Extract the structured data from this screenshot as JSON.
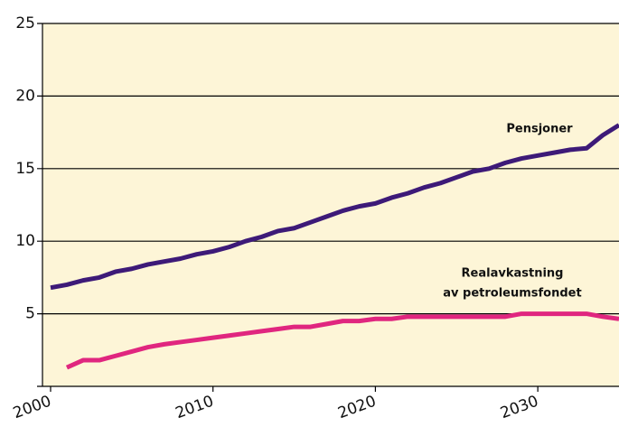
{
  "chart_data": {
    "type": "line",
    "x": [
      2000,
      2001,
      2002,
      2003,
      2004,
      2005,
      2006,
      2007,
      2008,
      2009,
      2010,
      2011,
      2012,
      2013,
      2014,
      2015,
      2016,
      2017,
      2018,
      2019,
      2020,
      2021,
      2022,
      2023,
      2024,
      2025,
      2026,
      2027,
      2028,
      2029,
      2030,
      2031,
      2032,
      2033,
      2034,
      2035
    ],
    "series": [
      {
        "name": "Pensjoner",
        "color": "#3d1a78",
        "values": [
          6.8,
          7.0,
          7.3,
          7.5,
          7.9,
          8.1,
          8.4,
          8.6,
          8.8,
          9.1,
          9.3,
          9.6,
          10.0,
          10.3,
          10.7,
          10.9,
          11.3,
          11.7,
          12.1,
          12.4,
          12.6,
          13.0,
          13.3,
          13.7,
          14.0,
          14.4,
          14.8,
          15.0,
          15.4,
          15.7,
          15.9,
          16.1,
          16.3,
          16.4,
          17.3,
          18.0
        ]
      },
      {
        "name": "Realavkastning av petroleumsfondet",
        "color": "#e0267f",
        "values": [
          null,
          1.3,
          1.8,
          1.8,
          2.1,
          2.4,
          2.7,
          2.9,
          3.05,
          3.2,
          3.35,
          3.5,
          3.65,
          3.8,
          3.95,
          4.1,
          4.1,
          4.3,
          4.5,
          4.5,
          4.65,
          4.65,
          4.8,
          4.8,
          4.8,
          4.8,
          4.8,
          4.8,
          4.8,
          5.0,
          5.0,
          5.0,
          5.0,
          5.0,
          4.8,
          4.65
        ]
      }
    ],
    "annotations": [
      "Pensjoner",
      "Realavkastning",
      "av petroleumsfondet"
    ],
    "xlim": [
      1999.5,
      2035
    ],
    "xticks": [
      2000,
      2010,
      2020,
      2030
    ],
    "ylim": [
      0,
      25
    ],
    "yticks": [
      5,
      10,
      15,
      20,
      25
    ],
    "grid": true,
    "background": "#fdf5d7"
  }
}
